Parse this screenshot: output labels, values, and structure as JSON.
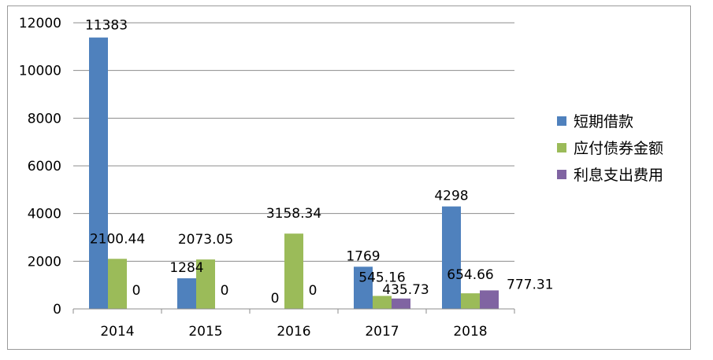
{
  "chart_data": {
    "type": "bar",
    "categories": [
      "2014",
      "2015",
      "2016",
      "2017",
      "2018"
    ],
    "series": [
      {
        "name": "短期借款",
        "color": "#4f81bd",
        "values": [
          11383,
          1284,
          0,
          1769,
          4298
        ],
        "labels": [
          "11383",
          "1284",
          "0",
          "1769",
          "4298"
        ]
      },
      {
        "name": "应付债券金额",
        "color": "#9bbb59",
        "values": [
          2100.44,
          2073.05,
          3158.34,
          545.16,
          654.66
        ],
        "labels": [
          "2100.44",
          "2073.05",
          "3158.34",
          "545.16",
          "654.66"
        ]
      },
      {
        "name": "利息支出费用",
        "color": "#8064a2",
        "values": [
          0,
          0,
          0,
          435.73,
          777.31
        ],
        "labels": [
          "0",
          "0",
          "0",
          "435.73",
          "777.31"
        ]
      }
    ],
    "ylim": [
      0,
      12000
    ],
    "yticks": [
      "0",
      "2000",
      "4000",
      "6000",
      "8000",
      "10000",
      "12000"
    ],
    "grid": true,
    "legend": "right"
  }
}
